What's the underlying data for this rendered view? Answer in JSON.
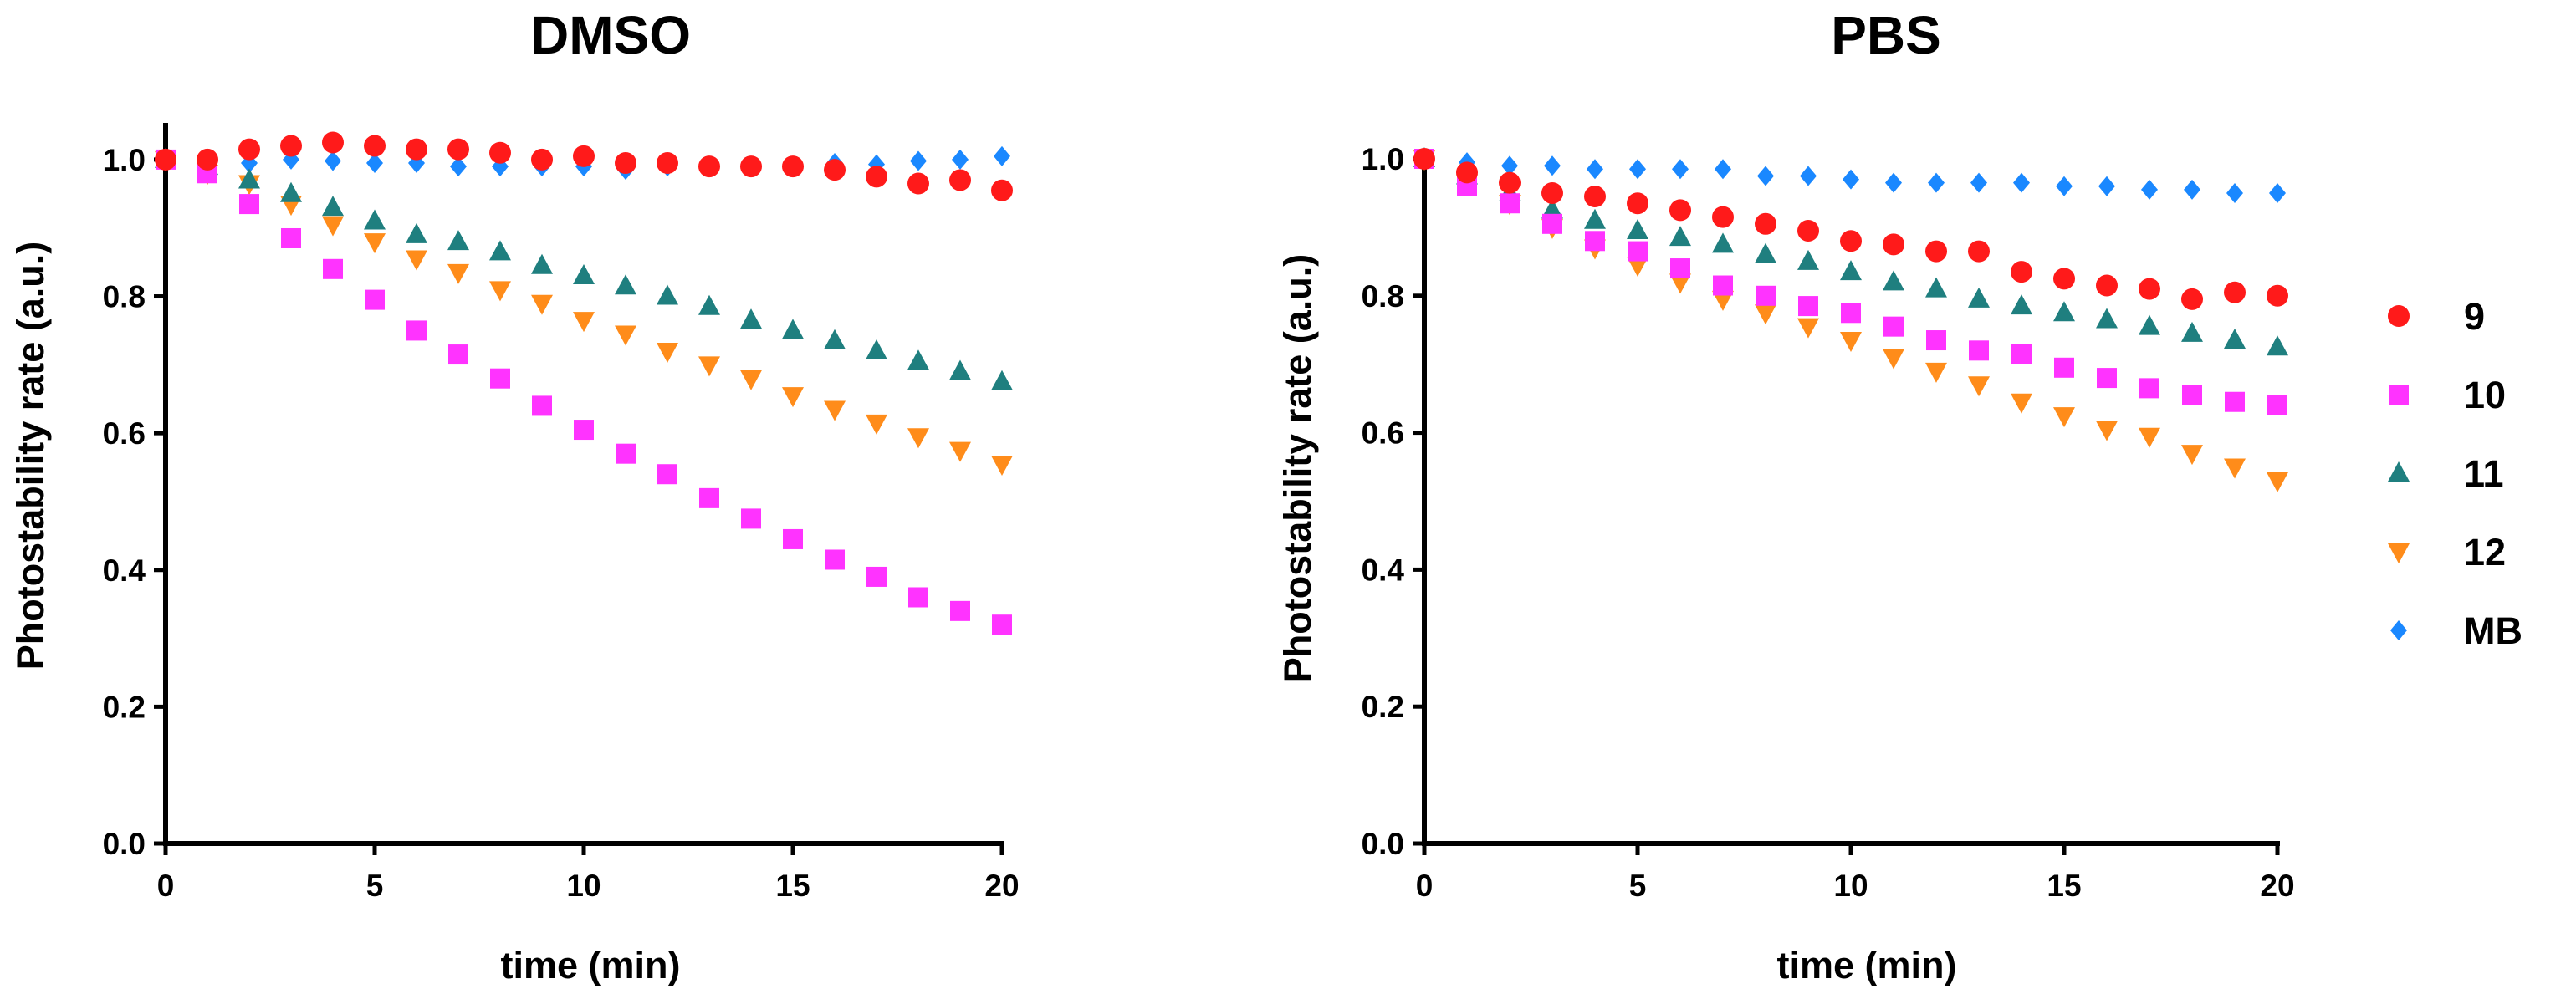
{
  "chart_data": [
    {
      "type": "scatter",
      "title": "DMSO",
      "xlabel": "time (min)",
      "ylabel": "Photostability rate (a.u.)",
      "xlim": [
        0,
        20
      ],
      "ylim": [
        0,
        1.05
      ],
      "xticks": [
        0,
        5,
        10,
        15,
        20
      ],
      "xtick_labels": [
        "0",
        "5",
        "10",
        "15",
        "20"
      ],
      "yticks": [
        0,
        0.2,
        0.4,
        0.6,
        0.8,
        1.0
      ],
      "ytick_labels": [
        "0.0",
        "0.2",
        "0.4",
        "0.6",
        "0.8",
        "1.0"
      ],
      "x": [
        0,
        1,
        2,
        3,
        4,
        5,
        6,
        7,
        8,
        9,
        10,
        11,
        12,
        13,
        14,
        15,
        16,
        17,
        18,
        19,
        20
      ],
      "series": [
        {
          "name": "MB",
          "values": [
            1.0,
            1.0,
            0.995,
            1.0,
            0.998,
            0.995,
            0.995,
            0.99,
            0.99,
            0.99,
            0.99,
            0.985,
            0.99,
            0.99,
            0.99,
            0.99,
            0.995,
            0.993,
            0.998,
            1.0,
            1.005
          ]
        },
        {
          "name": "12",
          "values": [
            1.0,
            0.98,
            0.965,
            0.935,
            0.905,
            0.88,
            0.855,
            0.835,
            0.81,
            0.79,
            0.765,
            0.745,
            0.72,
            0.7,
            0.68,
            0.655,
            0.635,
            0.615,
            0.595,
            0.575,
            0.555
          ]
        },
        {
          "name": "11",
          "values": [
            1.0,
            0.99,
            0.97,
            0.95,
            0.93,
            0.91,
            0.89,
            0.88,
            0.865,
            0.845,
            0.83,
            0.815,
            0.8,
            0.785,
            0.765,
            0.75,
            0.735,
            0.72,
            0.705,
            0.69,
            0.675
          ]
        },
        {
          "name": "10",
          "values": [
            1.0,
            0.98,
            0.935,
            0.885,
            0.84,
            0.795,
            0.75,
            0.715,
            0.68,
            0.64,
            0.605,
            0.57,
            0.54,
            0.505,
            0.475,
            0.445,
            0.415,
            0.39,
            0.36,
            0.34,
            0.32
          ]
        },
        {
          "name": "9",
          "values": [
            1.0,
            1.0,
            1.015,
            1.02,
            1.025,
            1.02,
            1.015,
            1.015,
            1.01,
            1.0,
            1.005,
            0.995,
            0.995,
            0.99,
            0.99,
            0.99,
            0.985,
            0.975,
            0.965,
            0.97,
            0.955
          ]
        }
      ]
    },
    {
      "type": "scatter",
      "title": "PBS",
      "xlabel": "time (min)",
      "ylabel": "Photostability rate (a.u.)",
      "xlim": [
        0,
        20
      ],
      "ylim": [
        0,
        1.0
      ],
      "xticks": [
        0,
        5,
        10,
        15,
        20
      ],
      "xtick_labels": [
        "0",
        "5",
        "10",
        "15",
        "20"
      ],
      "yticks": [
        0,
        0.2,
        0.4,
        0.6,
        0.8,
        1.0
      ],
      "ytick_labels": [
        "0.0",
        "0.2",
        "0.4",
        "0.6",
        "0.8",
        "1.0"
      ],
      "x": [
        0,
        1,
        2,
        3,
        4,
        5,
        6,
        7,
        8,
        9,
        10,
        11,
        12,
        13,
        14,
        15,
        16,
        17,
        18,
        19,
        20
      ],
      "series": [
        {
          "name": "MB",
          "values": [
            1.0,
            0.995,
            0.99,
            0.99,
            0.985,
            0.985,
            0.985,
            0.985,
            0.975,
            0.975,
            0.97,
            0.965,
            0.965,
            0.965,
            0.965,
            0.96,
            0.96,
            0.955,
            0.955,
            0.95,
            0.95
          ]
        },
        {
          "name": "12",
          "values": [
            1.0,
            0.965,
            0.935,
            0.9,
            0.87,
            0.845,
            0.82,
            0.795,
            0.775,
            0.755,
            0.735,
            0.71,
            0.69,
            0.67,
            0.645,
            0.625,
            0.605,
            0.595,
            0.57,
            0.55,
            0.53
          ]
        },
        {
          "name": "11",
          "values": [
            1.0,
            0.975,
            0.95,
            0.925,
            0.91,
            0.895,
            0.885,
            0.875,
            0.86,
            0.85,
            0.835,
            0.82,
            0.81,
            0.795,
            0.785,
            0.775,
            0.765,
            0.755,
            0.745,
            0.735,
            0.725
          ]
        },
        {
          "name": "10",
          "values": [
            1.0,
            0.96,
            0.935,
            0.905,
            0.88,
            0.865,
            0.84,
            0.815,
            0.8,
            0.785,
            0.775,
            0.755,
            0.735,
            0.72,
            0.715,
            0.695,
            0.68,
            0.665,
            0.655,
            0.645,
            0.64
          ]
        },
        {
          "name": "9",
          "values": [
            1.0,
            0.98,
            0.965,
            0.95,
            0.945,
            0.935,
            0.925,
            0.915,
            0.905,
            0.895,
            0.88,
            0.875,
            0.865,
            0.865,
            0.835,
            0.825,
            0.815,
            0.81,
            0.795,
            0.805,
            0.8
          ]
        }
      ]
    }
  ],
  "legend": {
    "position": "right",
    "items": [
      {
        "label": "9",
        "marker": "circle",
        "color": "#ff1a1a"
      },
      {
        "label": "10",
        "marker": "square",
        "color": "#ff33ff"
      },
      {
        "label": "11",
        "marker": "triangle-up",
        "color": "#1f7f7f"
      },
      {
        "label": "12",
        "marker": "triangle-down",
        "color": "#ff8c1a"
      },
      {
        "label": "MB",
        "marker": "diamond",
        "color": "#1a88ff"
      }
    ]
  }
}
